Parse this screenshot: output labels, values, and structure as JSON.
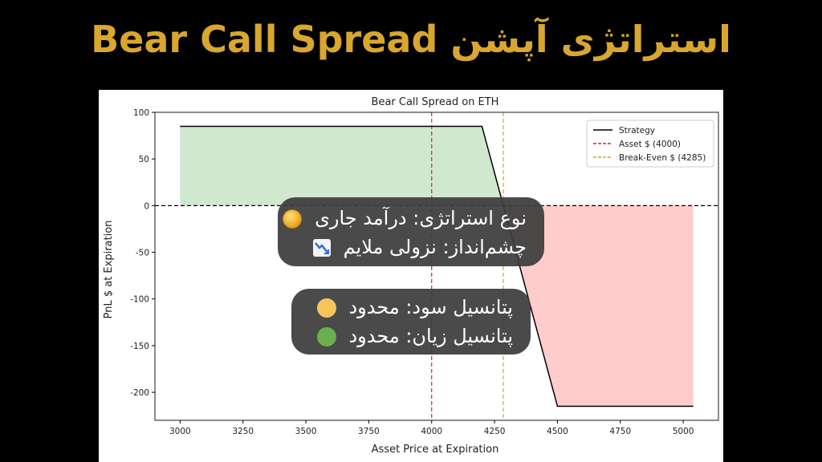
{
  "page_title": "استراتژی آپشن Bear Call Spread",
  "overlay": {
    "line1": "نوع استراتژی: درآمد جاری",
    "line1_icon": "coin-icon",
    "line2": "چشم‌انداز: نزولی ملایم",
    "line2_icon": "chart-decreasing-icon",
    "line3": "پتانسیل سود: محدود",
    "line3_icon": "yellow-circle-icon",
    "line3_color": "#f6c55a",
    "line4": "پتانسیل زیان: محدود",
    "line4_icon": "green-circle-icon",
    "line4_color": "#6ab04c"
  },
  "chart_data": {
    "type": "line",
    "title": "Bear Call Spread on ETH",
    "xlabel": "Asset Price at Expiration",
    "ylabel": "PnL $ at Expiration",
    "xlim": [
      2900,
      5140
    ],
    "ylim": [
      -230,
      100
    ],
    "xticks": [
      3000,
      3250,
      3500,
      3750,
      4000,
      4250,
      4500,
      4750,
      5000
    ],
    "yticks": [
      100,
      50,
      0,
      -50,
      -100,
      -150,
      -200
    ],
    "grid": false,
    "legend_position": "top-right",
    "series": [
      {
        "name": "Strategy",
        "color": "#000000",
        "style": "solid",
        "x": [
          3000,
          4200,
          4500,
          5040
        ],
        "y": [
          85,
          85,
          -215,
          -215
        ]
      }
    ],
    "vlines": [
      {
        "name": "Asset $ (4000)",
        "x": 4000,
        "color": "#e02020",
        "style": "dashed"
      },
      {
        "name": "Break-Even $ (4285)",
        "x": 4285,
        "color": "#c8b400",
        "style": "dashed"
      }
    ],
    "hline": {
      "y": 0,
      "color": "#000000",
      "style": "dashed"
    },
    "profit_fill_color": "#cfe8cf",
    "loss_fill_color": "#ffcccc"
  }
}
